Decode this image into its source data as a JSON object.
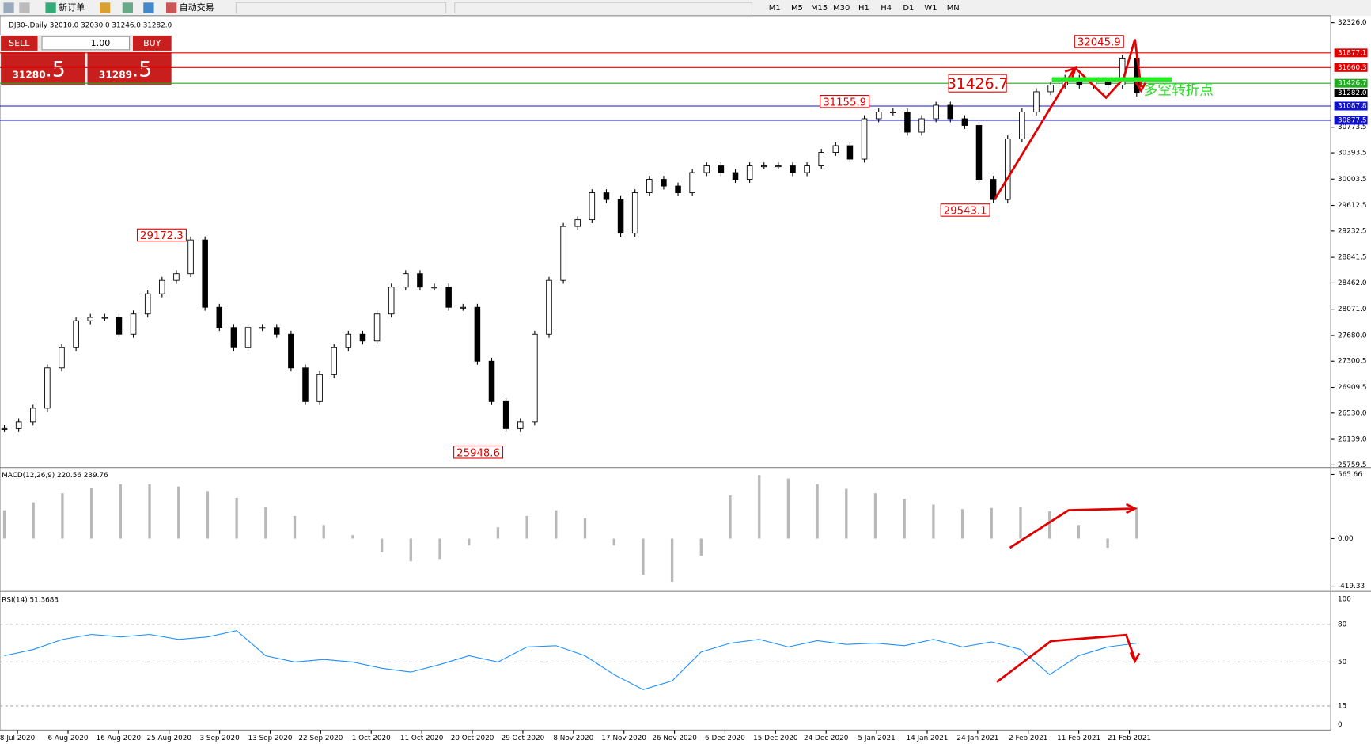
{
  "toolbar": {
    "new_order": "新订单",
    "auto_trading": "自动交易",
    "timeframes": [
      "M1",
      "M5",
      "M15",
      "M30",
      "H1",
      "H4",
      "D1",
      "W1",
      "MN"
    ]
  },
  "chart_header": "DJ30-,Daily  32010.0 32030.0 31246.0 31282.0",
  "trade_panel": {
    "sell": "SELL",
    "lot": "1.00",
    "buy": "BUY",
    "bid_main": "31280",
    "bid_big": ".5",
    "ask_main": "31289",
    "ask_big": ".5"
  },
  "price_axis": {
    "ylim": [
      25759.5,
      32326
    ],
    "ticks": [
      {
        "value": 32326,
        "label": "32326.0"
      },
      {
        "value": 30773.5,
        "label": "30773.5"
      },
      {
        "value": 30393.5,
        "label": "30393.5"
      },
      {
        "value": 30003.5,
        "label": "30003.5"
      },
      {
        "value": 29612.5,
        "label": "29612.5"
      },
      {
        "value": 29232.5,
        "label": "29232.5"
      },
      {
        "value": 28841.5,
        "label": "28841.5"
      },
      {
        "value": 28462,
        "label": "28462.0"
      },
      {
        "value": 28071,
        "label": "28071.0"
      },
      {
        "value": 27680,
        "label": "27680.0"
      },
      {
        "value": 27300.5,
        "label": "27300.5"
      },
      {
        "value": 26909.5,
        "label": "26909.5"
      },
      {
        "value": 26530,
        "label": "26530.0"
      },
      {
        "value": 26139,
        "label": "26139.0"
      },
      {
        "value": 25759.5,
        "label": "25759.5"
      }
    ]
  },
  "levels": [
    {
      "value": 31877.1,
      "label": "31877.1",
      "color": "#e00000"
    },
    {
      "value": 31660.3,
      "label": "31660.3",
      "color": "#e00000"
    },
    {
      "value": 31426.7,
      "label": "31426.7",
      "color": "#22aa22"
    },
    {
      "value": 31282,
      "label": "31282.0",
      "color": "#000000"
    },
    {
      "value": 31087.8,
      "label": "31087.8",
      "color": "#1010d0"
    },
    {
      "value": 30877.5,
      "label": "30877.5",
      "color": "#1010d0"
    }
  ],
  "annotations": [
    {
      "value": 32045.9,
      "label": "32045.9"
    },
    {
      "value": 31426.7,
      "label": "31426.7"
    },
    {
      "value": 31155.9,
      "label": "31155.9"
    },
    {
      "value": 29172.3,
      "label": "29172.3"
    },
    {
      "value": 29543.1,
      "label": "29543.1"
    },
    {
      "value": 25948.6,
      "label": "25948.6"
    }
  ],
  "note": "多空转折点",
  "price": {
    "closes": [
      26300,
      26400,
      26600,
      27200,
      27500,
      27900,
      27950,
      27950,
      27700,
      28000,
      28300,
      28500,
      28600,
      29100,
      28100,
      27800,
      27500,
      27800,
      27800,
      27700,
      27200,
      26700,
      27100,
      27500,
      27700,
      27600,
      28000,
      28400,
      28600,
      28400,
      28400,
      28100,
      28100,
      27300,
      26700,
      26300,
      26400,
      27700,
      28500,
      29300,
      29400,
      29800,
      29700,
      29200,
      29800,
      30000,
      29900,
      29800,
      30100,
      30200,
      30100,
      30000,
      30200,
      30200,
      30200,
      30100,
      30200,
      30400,
      30500,
      30300,
      30900,
      31000,
      31000,
      30700,
      30900,
      31100,
      30900,
      30800,
      30000,
      29700,
      30600,
      31000,
      31300,
      31400,
      31500,
      31400,
      31450,
      31400,
      31800,
      31282
    ]
  },
  "x_axis": {
    "labels": [
      "8 Jul 2020",
      "6 Aug 2020",
      "16 Aug 2020",
      "25 Aug 2020",
      "3 Sep 2020",
      "13 Sep 2020",
      "22 Sep 2020",
      "1 Oct 2020",
      "11 Oct 2020",
      "20 Oct 2020",
      "29 Oct 2020",
      "8 Nov 2020",
      "17 Nov 2020",
      "26 Nov 2020",
      "6 Dec 2020",
      "15 Dec 2020",
      "24 Dec 2020",
      "5 Jan 2021",
      "14 Jan 2021",
      "24 Jan 2021",
      "2 Feb 2021",
      "11 Feb 2021",
      "21 Feb 2021"
    ]
  },
  "macd": {
    "title": "MACD(12,26,9) 220.56 239.76",
    "ylim": [
      -419.33,
      565.66
    ],
    "ticks": [
      {
        "value": 565.66,
        "label": "565.66"
      },
      {
        "value": 0,
        "label": "0.00"
      },
      {
        "value": -419.33,
        "label": "-419.33"
      }
    ],
    "histogram": [
      250,
      320,
      400,
      450,
      480,
      480,
      460,
      420,
      360,
      280,
      200,
      120,
      30,
      -120,
      -200,
      -180,
      -60,
      100,
      200,
      250,
      180,
      -60,
      -320,
      -380,
      -150,
      380,
      560,
      530,
      480,
      440,
      400,
      350,
      300,
      260,
      270,
      280,
      240,
      120,
      -80,
      280
    ]
  },
  "rsi": {
    "title": "RSI(14) 51.3683",
    "ylim": [
      0,
      100
    ],
    "ticks": [
      100,
      80,
      50,
      15,
      0
    ],
    "values": [
      55,
      60,
      68,
      72,
      70,
      72,
      68,
      70,
      75,
      55,
      50,
      52,
      50,
      45,
      42,
      48,
      55,
      50,
      62,
      63,
      55,
      40,
      28,
      35,
      58,
      65,
      68,
      62,
      67,
      64,
      65,
      63,
      68,
      62,
      66,
      60,
      40,
      55,
      62,
      65
    ]
  }
}
